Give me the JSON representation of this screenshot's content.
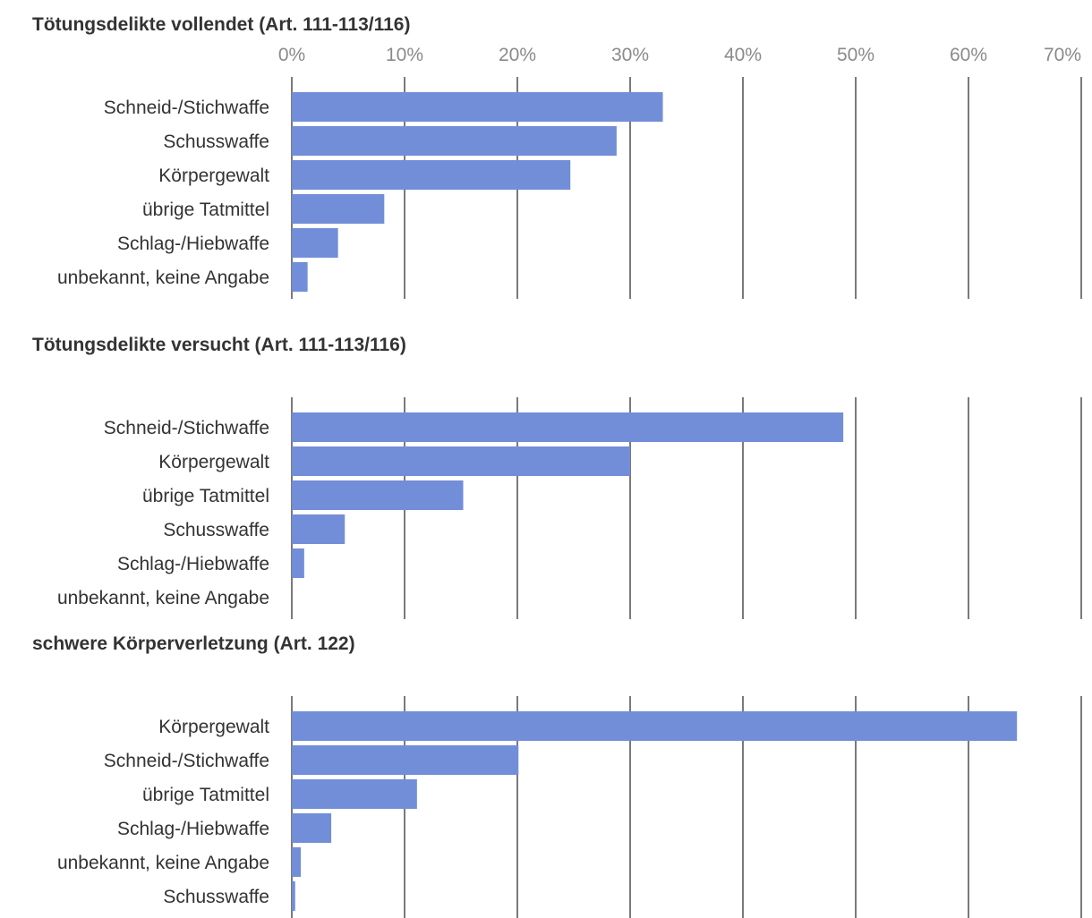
{
  "chart_data": {
    "type": "bar",
    "orientation": "horizontal",
    "x_ticks": [
      "0%",
      "10%",
      "20%",
      "30%",
      "40%",
      "50%",
      "60%",
      "70%"
    ],
    "xlim": [
      0,
      70
    ],
    "bar_color": "#738ed8",
    "grid_color": "#7a7a7a",
    "panels": [
      {
        "title": "Tötungsdelikte vollendet (Art. 111-113/116)",
        "categories": [
          "Schneid-/Stichwaffe",
          "Schusswaffe",
          "Körpergewalt",
          "übrige Tatmittel",
          "Schlag-/Hiebwaffe",
          "unbekannt, keine Angabe"
        ],
        "values": [
          32.9,
          28.8,
          24.7,
          8.2,
          4.1,
          1.4
        ]
      },
      {
        "title": "Tötungsdelikte versucht (Art. 111-113/116)",
        "categories": [
          "Schneid-/Stichwaffe",
          "Körpergewalt",
          "übrige Tatmittel",
          "Schusswaffe",
          "Schlag-/Hiebwaffe",
          "unbekannt, keine Angabe"
        ],
        "values": [
          48.9,
          30.0,
          15.2,
          4.7,
          1.1,
          0
        ]
      },
      {
        "title": "schwere Körperverletzung (Art. 122)",
        "categories": [
          "Körpergewalt",
          "Schneid-/Stichwaffe",
          "übrige Tatmittel",
          "Schlag-/Hiebwaffe",
          "unbekannt, keine Angabe",
          "Schusswaffe"
        ],
        "values": [
          64.3,
          20.1,
          11.1,
          3.5,
          0.8,
          0.3
        ]
      }
    ]
  }
}
